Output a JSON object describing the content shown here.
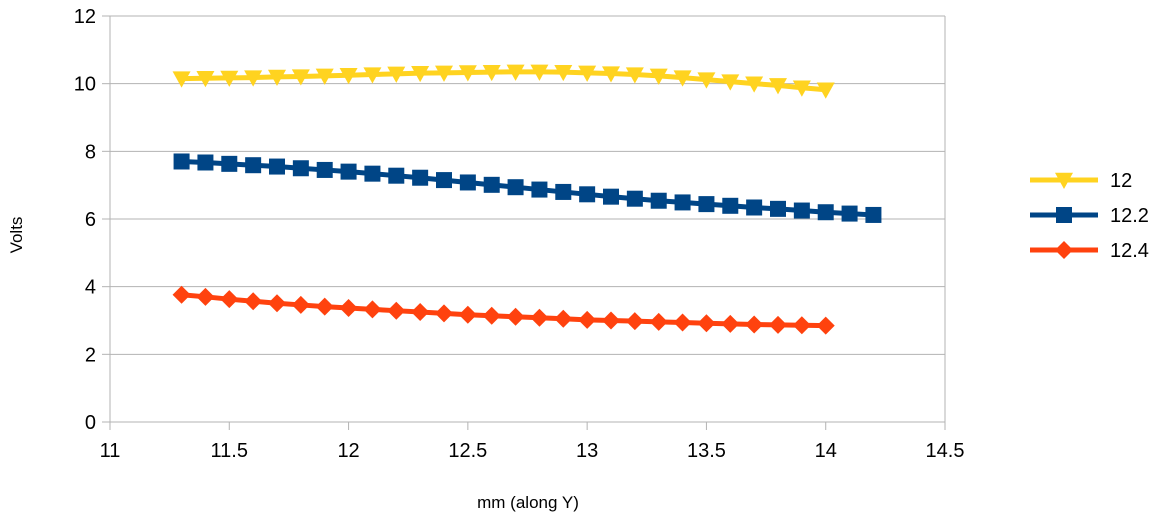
{
  "chart_data": {
    "type": "line",
    "title": "",
    "xlabel": "mm (along Y)",
    "ylabel": "Volts",
    "xlim": [
      11,
      14.5
    ],
    "ylim": [
      0,
      12
    ],
    "xticks": [
      11,
      11.5,
      12,
      12.5,
      13,
      13.5,
      14,
      14.5
    ],
    "xtick_labels": [
      "11",
      "11.5",
      "12",
      "12.5",
      "13",
      "13.5",
      "14",
      "14.5"
    ],
    "yticks": [
      0,
      2,
      4,
      6,
      8,
      10,
      12
    ],
    "ytick_labels": [
      "0",
      "2",
      "4",
      "6",
      "8",
      "10",
      "12"
    ],
    "grid": "horizontal",
    "legend_position": "right",
    "series": [
      {
        "name": "12",
        "color": "#ffd320",
        "marker": "triangle-down",
        "x": [
          11.3,
          11.4,
          11.5,
          11.6,
          11.7,
          11.8,
          11.9,
          12.0,
          12.1,
          12.2,
          12.3,
          12.4,
          12.5,
          12.6,
          12.7,
          12.8,
          12.9,
          13.0,
          13.1,
          13.2,
          13.3,
          13.4,
          13.5,
          13.6,
          13.7,
          13.8,
          13.9,
          14.0
        ],
        "values": [
          10.15,
          10.16,
          10.17,
          10.18,
          10.2,
          10.21,
          10.23,
          10.25,
          10.27,
          10.29,
          10.31,
          10.32,
          10.33,
          10.34,
          10.35,
          10.35,
          10.34,
          10.32,
          10.3,
          10.27,
          10.23,
          10.18,
          10.12,
          10.06,
          10.0,
          9.95,
          9.88,
          9.82
        ]
      },
      {
        "name": "12.2",
        "color": "#004586",
        "marker": "square",
        "x": [
          11.3,
          11.4,
          11.5,
          11.6,
          11.7,
          11.8,
          11.9,
          12.0,
          12.1,
          12.2,
          12.3,
          12.4,
          12.5,
          12.6,
          12.7,
          12.8,
          12.9,
          13.0,
          13.1,
          13.2,
          13.3,
          13.4,
          13.5,
          13.6,
          13.7,
          13.8,
          13.9,
          14.0,
          14.1,
          14.2
        ],
        "values": [
          7.7,
          7.67,
          7.63,
          7.59,
          7.55,
          7.5,
          7.45,
          7.4,
          7.34,
          7.28,
          7.22,
          7.15,
          7.08,
          7.01,
          6.94,
          6.87,
          6.8,
          6.73,
          6.66,
          6.6,
          6.54,
          6.49,
          6.44,
          6.39,
          6.34,
          6.3,
          6.25,
          6.2,
          6.16,
          6.12
        ]
      },
      {
        "name": "12.4",
        "color": "#ff420e",
        "marker": "diamond",
        "x": [
          11.3,
          11.4,
          11.5,
          11.6,
          11.7,
          11.8,
          11.9,
          12.0,
          12.1,
          12.2,
          12.3,
          12.4,
          12.5,
          12.6,
          12.7,
          12.8,
          12.9,
          13.0,
          13.1,
          13.2,
          13.3,
          13.4,
          13.5,
          13.6,
          13.7,
          13.8,
          13.9,
          14.0
        ],
        "values": [
          3.76,
          3.7,
          3.63,
          3.57,
          3.51,
          3.46,
          3.41,
          3.37,
          3.33,
          3.29,
          3.25,
          3.21,
          3.17,
          3.14,
          3.11,
          3.08,
          3.05,
          3.02,
          3.0,
          2.98,
          2.96,
          2.94,
          2.92,
          2.9,
          2.88,
          2.87,
          2.86,
          2.85
        ]
      }
    ]
  }
}
